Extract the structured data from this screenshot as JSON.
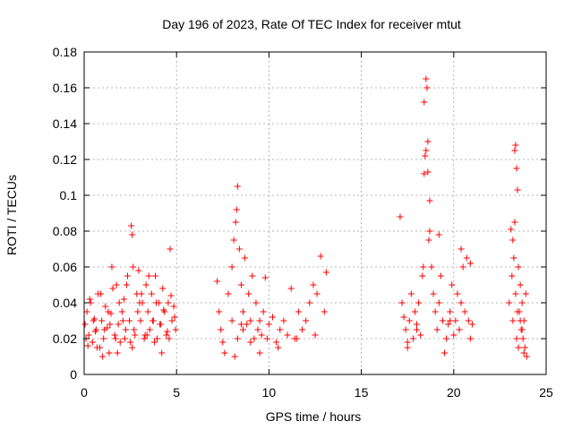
{
  "chart_data": {
    "type": "scatter",
    "title": "Day 196 of 2023, Rate Of TEC Index for receiver mtut",
    "xlabel": "GPS time / hours",
    "ylabel": "ROTI / TECUs",
    "xlim": [
      0,
      25
    ],
    "ylim": [
      0,
      0.18
    ],
    "xticks": [
      "0",
      "5",
      "10",
      "15",
      "20",
      "25"
    ],
    "yticks": [
      "0",
      "0.02",
      "0.04",
      "0.06",
      "0.08",
      "0.1",
      "0.12",
      "0.14",
      "0.16",
      "0.18"
    ],
    "grid": true,
    "marker": "plus",
    "color": "#ff0000",
    "x": [
      0.05,
      0.15,
      0.25,
      0.35,
      0.45,
      0.55,
      0.65,
      0.75,
      0.85,
      0.95,
      1.05,
      1.15,
      1.25,
      1.35,
      1.45,
      1.55,
      1.65,
      1.75,
      1.85,
      1.95,
      2.05,
      2.15,
      2.25,
      2.35,
      2.45,
      2.55,
      2.6,
      2.65,
      2.75,
      2.85,
      2.95,
      3.05,
      3.15,
      3.25,
      3.35,
      3.45,
      3.55,
      3.65,
      3.75,
      3.85,
      3.95,
      4.05,
      4.15,
      4.25,
      4.35,
      4.45,
      4.55,
      4.65,
      4.75,
      4.85,
      4.95,
      0.1,
      0.3,
      0.5,
      0.7,
      0.9,
      1.1,
      1.3,
      1.5,
      1.7,
      1.9,
      2.1,
      2.3,
      2.5,
      2.7,
      2.9,
      3.1,
      3.3,
      3.5,
      3.7,
      3.9,
      4.1,
      4.3,
      4.5,
      4.7,
      4.9,
      0.2,
      0.6,
      1.0,
      1.4,
      1.8,
      2.2,
      2.6,
      3.0,
      3.4,
      3.8,
      4.2,
      4.6,
      7.2,
      7.3,
      7.4,
      7.5,
      7.6,
      7.8,
      8.0,
      8.1,
      8.2,
      8.25,
      8.3,
      8.4,
      8.5,
      8.6,
      8.7,
      8.8,
      8.9,
      9.0,
      9.1,
      9.2,
      9.3,
      9.4,
      9.5,
      9.6,
      9.7,
      9.8,
      9.9,
      10.0,
      10.2,
      10.4,
      10.6,
      10.8,
      11.0,
      11.2,
      11.4,
      11.6,
      11.8,
      12.0,
      12.2,
      12.4,
      12.6,
      12.8,
      13.0,
      13.1,
      8.0,
      8.3,
      8.6,
      9.0,
      9.5,
      10.5,
      11.5,
      12.5,
      8.5,
      8.15,
      17.1,
      17.2,
      17.3,
      17.4,
      17.5,
      17.6,
      17.7,
      17.8,
      17.9,
      18.0,
      18.1,
      18.2,
      18.3,
      18.35,
      18.4,
      18.45,
      18.5,
      18.55,
      18.6,
      18.65,
      18.7,
      18.8,
      18.9,
      19.0,
      19.1,
      19.2,
      19.3,
      19.4,
      19.5,
      19.6,
      19.7,
      19.8,
      19.9,
      20.0,
      20.1,
      20.2,
      20.3,
      20.4,
      20.5,
      20.6,
      20.7,
      20.8,
      20.9,
      21.0,
      18.4,
      18.5,
      18.6,
      18.7,
      19.2,
      19.8,
      20.4,
      20.9,
      17.5,
      18.0,
      23.0,
      23.1,
      23.15,
      23.2,
      23.25,
      23.3,
      23.35,
      23.4,
      23.45,
      23.5,
      23.55,
      23.6,
      23.65,
      23.7,
      23.75,
      23.8,
      23.85,
      23.9,
      23.95,
      23.3,
      23.4,
      23.5,
      23.6,
      23.7,
      23.2,
      23.8,
      23.35,
      23.45
    ],
    "y": [
      0.028,
      0.035,
      0.022,
      0.04,
      0.018,
      0.031,
      0.025,
      0.045,
      0.015,
      0.03,
      0.02,
      0.038,
      0.026,
      0.012,
      0.034,
      0.048,
      0.022,
      0.05,
      0.028,
      0.018,
      0.035,
      0.042,
      0.025,
      0.055,
      0.03,
      0.083,
      0.078,
      0.06,
      0.022,
      0.045,
      0.058,
      0.03,
      0.04,
      0.02,
      0.05,
      0.035,
      0.025,
      0.045,
      0.03,
      0.055,
      0.02,
      0.04,
      0.028,
      0.048,
      0.035,
      0.022,
      0.04,
      0.07,
      0.03,
      0.038,
      0.025,
      0.02,
      0.042,
      0.03,
      0.015,
      0.045,
      0.025,
      0.035,
      0.06,
      0.02,
      0.04,
      0.03,
      0.05,
      0.018,
      0.025,
      0.035,
      0.045,
      0.022,
      0.055,
      0.03,
      0.04,
      0.028,
      0.036,
      0.024,
      0.044,
      0.032,
      0.016,
      0.024,
      0.01,
      0.028,
      0.012,
      0.02,
      0.015,
      0.04,
      0.022,
      0.018,
      0.012,
      0.02,
      0.052,
      0.035,
      0.025,
      0.018,
      0.012,
      0.045,
      0.06,
      0.075,
      0.085,
      0.092,
      0.105,
      0.07,
      0.05,
      0.035,
      0.065,
      0.028,
      0.045,
      0.03,
      0.055,
      0.02,
      0.04,
      0.025,
      0.03,
      0.022,
      0.035,
      0.054,
      0.02,
      0.028,
      0.032,
      0.018,
      0.025,
      0.03,
      0.022,
      0.048,
      0.02,
      0.035,
      0.025,
      0.03,
      0.04,
      0.05,
      0.045,
      0.066,
      0.035,
      0.057,
      0.03,
      0.02,
      0.025,
      0.018,
      0.012,
      0.015,
      0.02,
      0.022,
      0.028,
      0.01,
      0.088,
      0.04,
      0.032,
      0.025,
      0.018,
      0.03,
      0.045,
      0.02,
      0.035,
      0.028,
      0.04,
      0.022,
      0.055,
      0.06,
      0.112,
      0.122,
      0.165,
      0.16,
      0.13,
      0.075,
      0.08,
      0.06,
      0.045,
      0.035,
      0.025,
      0.04,
      0.055,
      0.03,
      0.012,
      0.02,
      0.028,
      0.035,
      0.05,
      0.022,
      0.03,
      0.045,
      0.025,
      0.04,
      0.06,
      0.035,
      0.065,
      0.03,
      0.02,
      0.028,
      0.152,
      0.125,
      0.113,
      0.097,
      0.078,
      0.03,
      0.07,
      0.062,
      0.015,
      0.025,
      0.04,
      0.081,
      0.055,
      0.03,
      0.065,
      0.125,
      0.128,
      0.115,
      0.103,
      0.06,
      0.035,
      0.05,
      0.025,
      0.04,
      0.02,
      0.03,
      0.015,
      0.045,
      0.01,
      0.085,
      0.02,
      0.015,
      0.03,
      0.025,
      0.075,
      0.012,
      0.045,
      0.035
    ]
  }
}
